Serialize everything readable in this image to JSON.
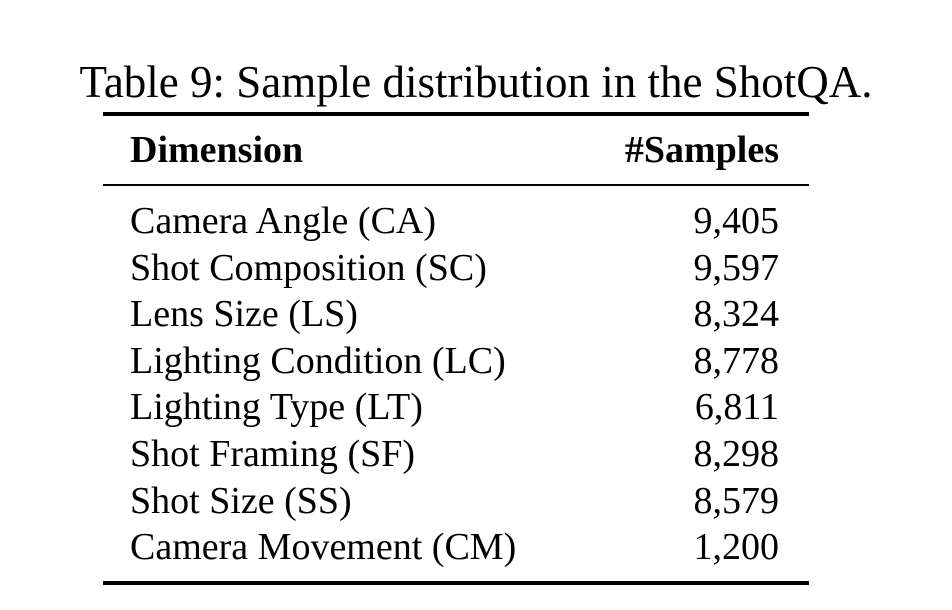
{
  "caption": "Table 9: Sample distribution in the ShotQA.",
  "table": {
    "headers": {
      "dimension": "Dimension",
      "samples": "#Samples"
    },
    "rows": [
      {
        "dimension": "Camera Angle (CA)",
        "samples": "9,405"
      },
      {
        "dimension": "Shot Composition (SC)",
        "samples": "9,597"
      },
      {
        "dimension": "Lens Size (LS)",
        "samples": "8,324"
      },
      {
        "dimension": "Lighting Condition (LC)",
        "samples": "8,778"
      },
      {
        "dimension": "Lighting Type (LT)",
        "samples": "6,811"
      },
      {
        "dimension": "Shot Framing (SF)",
        "samples": "8,298"
      },
      {
        "dimension": "Shot Size (SS)",
        "samples": "8,579"
      },
      {
        "dimension": "Camera Movement (CM)",
        "samples": "1,200"
      }
    ]
  }
}
